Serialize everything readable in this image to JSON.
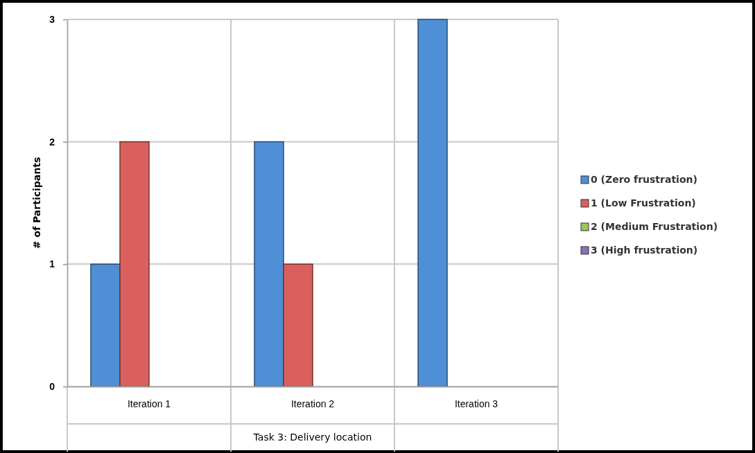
{
  "chart_data": {
    "type": "bar",
    "xlabel": "Task 3: Delivery location",
    "ylabel": "# of Participants",
    "categories": [
      "Iteration 1",
      "Iteration 2",
      "Iteration 3"
    ],
    "series": [
      {
        "name": "0 (Zero frustration)",
        "color": "#4f8fd6",
        "values": [
          1,
          2,
          3
        ]
      },
      {
        "name": "1 (Low Frustration)",
        "color": "#d9605c",
        "values": [
          2,
          1,
          0
        ]
      },
      {
        "name": "2 (Medium Frustration)",
        "color": "#9dc35a",
        "values": [
          0,
          0,
          0
        ]
      },
      {
        "name": "3 (High frustration)",
        "color": "#8a70b4",
        "values": [
          0,
          0,
          0
        ]
      }
    ],
    "ylim": [
      0,
      3
    ],
    "yticks": [
      0,
      1,
      2,
      3
    ],
    "grid": "y",
    "legend": "right"
  }
}
